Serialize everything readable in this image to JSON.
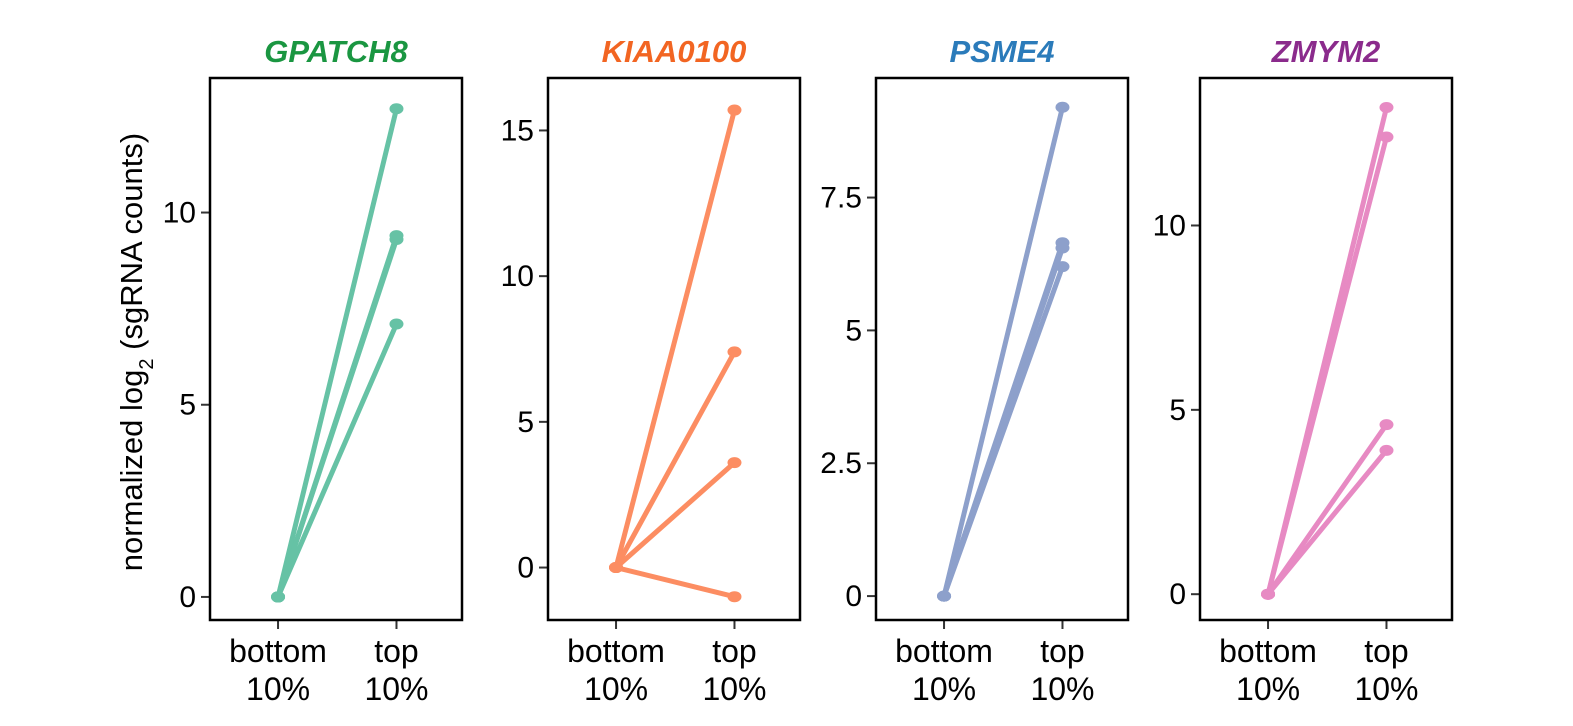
{
  "ylabel": {
    "prefix": "normalized log",
    "subscript": "2",
    "suffix": " (sgRNA counts)"
  },
  "chart_data": [
    {
      "type": "line",
      "title": "GPATCH8",
      "title_color": "#1a9641",
      "line_color": "#66c2a5",
      "categories": [
        "bottom 10%",
        "top 10%"
      ],
      "ylim": [
        -0.6,
        13.5
      ],
      "yticks": [
        0,
        5,
        10
      ],
      "ytick_labels": [
        "0",
        "5",
        "10"
      ],
      "series": [
        {
          "values": [
            0,
            12.7
          ]
        },
        {
          "values": [
            0,
            9.4
          ]
        },
        {
          "values": [
            0,
            9.3
          ]
        },
        {
          "values": [
            0,
            7.1
          ]
        }
      ]
    },
    {
      "type": "line",
      "title": "KIAA0100",
      "title_color": "#f26522",
      "line_color": "#fc8d62",
      "categories": [
        "bottom 10%",
        "top 10%"
      ],
      "ylim": [
        -1.8,
        16.8
      ],
      "yticks": [
        0,
        5,
        10,
        15
      ],
      "ytick_labels": [
        "0",
        "5",
        "10",
        "15"
      ],
      "series": [
        {
          "values": [
            0,
            15.7
          ]
        },
        {
          "values": [
            0,
            7.4
          ]
        },
        {
          "values": [
            0,
            3.6
          ]
        },
        {
          "values": [
            0,
            -1.0
          ]
        }
      ]
    },
    {
      "type": "line",
      "title": "PSME4",
      "title_color": "#2b7bba",
      "line_color": "#8da0cb",
      "categories": [
        "bottom 10%",
        "top 10%"
      ],
      "ylim": [
        -0.45,
        9.75
      ],
      "yticks": [
        0,
        2.5,
        5,
        7.5
      ],
      "ytick_labels": [
        "0",
        "2.5",
        "5",
        "7.5"
      ],
      "series": [
        {
          "values": [
            0,
            9.2
          ]
        },
        {
          "values": [
            0,
            6.65
          ]
        },
        {
          "values": [
            0,
            6.55
          ]
        },
        {
          "values": [
            0,
            6.2
          ]
        }
      ]
    },
    {
      "type": "line",
      "title": "ZMYM2",
      "title_color": "#8b2b8c",
      "line_color": "#e78ac3",
      "categories": [
        "bottom 10%",
        "top 10%"
      ],
      "ylim": [
        -0.7,
        14.0
      ],
      "yticks": [
        0,
        5,
        10
      ],
      "ytick_labels": [
        "0",
        "5",
        "10"
      ],
      "series": [
        {
          "values": [
            0,
            13.2
          ]
        },
        {
          "values": [
            0,
            12.4
          ]
        },
        {
          "values": [
            0,
            4.6
          ]
        },
        {
          "values": [
            0,
            3.9
          ]
        }
      ]
    }
  ]
}
